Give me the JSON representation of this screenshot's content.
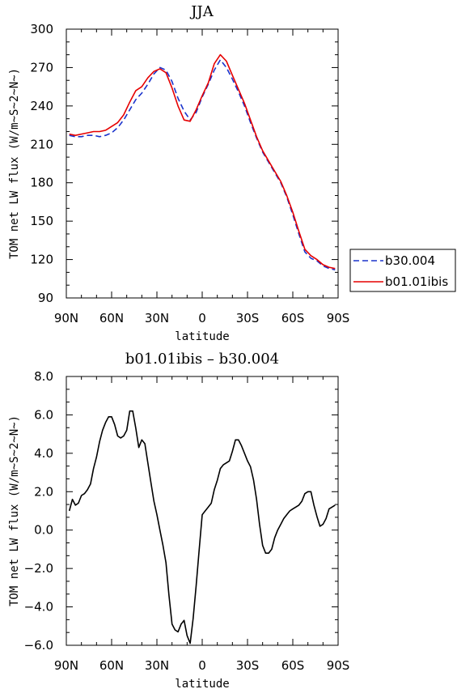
{
  "chart_data": [
    {
      "type": "line",
      "title": "JJA",
      "xlabel": "latitude",
      "ylabel": "TOM net LW flux (W/m~S~2~N~)",
      "xlim": [
        90,
        -90
      ],
      "ylim": [
        90,
        300
      ],
      "x_ticks": [
        90,
        60,
        30,
        0,
        -30,
        -60,
        -90
      ],
      "x_tick_labels": [
        "90N",
        "60N",
        "30N",
        "0",
        "30S",
        "60S",
        "90S"
      ],
      "y_ticks": [
        90,
        120,
        150,
        180,
        210,
        240,
        270,
        300
      ],
      "y_tick_labels": [
        "90",
        "120",
        "150",
        "180",
        "210",
        "240",
        "270",
        "300"
      ],
      "legend_position": "right",
      "x": [
        88,
        84,
        80,
        76,
        72,
        68,
        64,
        60,
        56,
        52,
        48,
        44,
        40,
        36,
        32,
        28,
        24,
        20,
        16,
        12,
        8,
        4,
        0,
        -4,
        -8,
        -12,
        -16,
        -20,
        -24,
        -28,
        -32,
        -36,
        -40,
        -44,
        -48,
        -52,
        -56,
        -60,
        -64,
        -68,
        -72,
        -76,
        -80,
        -84,
        -88
      ],
      "series": [
        {
          "name": "b30.004",
          "color": "#1a33cc",
          "dash": "dashed",
          "values": [
            217,
            216,
            216,
            217,
            217,
            216,
            217,
            219,
            223,
            229,
            237,
            245,
            250,
            257,
            265,
            270,
            268,
            259,
            246,
            236,
            229,
            235,
            247,
            257,
            268,
            276,
            270,
            261,
            251,
            240,
            227,
            215,
            204,
            196,
            188,
            180,
            169,
            155,
            140,
            126,
            121,
            119,
            115,
            113,
            112
          ]
        },
        {
          "name": "b01.01ibis",
          "color": "#e60000",
          "dash": "solid",
          "values": [
            218,
            217,
            218,
            219,
            220,
            220,
            221,
            224,
            227,
            233,
            243,
            252,
            255,
            262,
            267,
            269,
            266,
            254,
            240,
            229,
            228,
            237,
            248,
            258,
            273,
            280,
            275,
            264,
            253,
            242,
            229,
            216,
            205,
            197,
            189,
            181,
            170,
            157,
            142,
            128,
            123,
            120,
            116,
            114,
            113
          ]
        }
      ]
    },
    {
      "type": "line",
      "title": "b01.01ibis – b30.004",
      "xlabel": "latitude",
      "ylabel": "TOM net LW flux (W/m~S~2~N~)",
      "xlim": [
        90,
        -90
      ],
      "ylim": [
        -6,
        8
      ],
      "x_ticks": [
        90,
        60,
        30,
        0,
        -30,
        -60,
        -90
      ],
      "x_tick_labels": [
        "90N",
        "60N",
        "30N",
        "0",
        "30S",
        "60S",
        "90S"
      ],
      "y_ticks": [
        -6,
        -4,
        -2,
        0,
        2,
        4,
        6,
        8
      ],
      "y_tick_labels": [
        "−6.0",
        "−4.0",
        "−2.0",
        "0.0",
        "2.0",
        "4.0",
        "6.0",
        "8.0"
      ],
      "x": [
        88,
        86,
        84,
        82,
        80,
        78,
        76,
        74,
        72,
        70,
        68,
        66,
        64,
        62,
        60,
        58,
        56,
        54,
        52,
        50,
        48,
        46,
        44,
        42,
        40,
        38,
        36,
        34,
        32,
        30,
        28,
        26,
        24,
        22,
        20,
        18,
        16,
        14,
        12,
        10,
        8,
        6,
        4,
        2,
        0,
        -2,
        -4,
        -6,
        -8,
        -10,
        -12,
        -14,
        -16,
        -18,
        -20,
        -22,
        -24,
        -26,
        -28,
        -30,
        -32,
        -34,
        -36,
        -38,
        -40,
        -42,
        -44,
        -46,
        -48,
        -50,
        -52,
        -54,
        -56,
        -58,
        -60,
        -62,
        -64,
        -66,
        -68,
        -70,
        -72,
        -74,
        -76,
        -78,
        -80,
        -82,
        -84,
        -86,
        -88
      ],
      "series": [
        {
          "name": "",
          "color": "#000000",
          "dash": "solid",
          "values": [
            1.0,
            1.6,
            1.3,
            1.4,
            1.8,
            1.9,
            2.1,
            2.4,
            3.2,
            3.8,
            4.6,
            5.2,
            5.6,
            5.9,
            5.9,
            5.5,
            4.9,
            4.8,
            4.9,
            5.2,
            6.2,
            6.2,
            5.3,
            4.3,
            4.7,
            4.5,
            3.5,
            2.5,
            1.5,
            0.8,
            0.0,
            -0.8,
            -1.7,
            -3.4,
            -4.9,
            -5.2,
            -5.3,
            -4.9,
            -4.7,
            -5.5,
            -5.9,
            -4.6,
            -2.9,
            -1.0,
            0.8,
            1.0,
            1.2,
            1.4,
            2.1,
            2.6,
            3.2,
            3.4,
            3.5,
            3.6,
            4.1,
            4.7,
            4.7,
            4.4,
            4.0,
            3.6,
            3.3,
            2.6,
            1.6,
            0.3,
            -0.8,
            -1.2,
            -1.2,
            -1.0,
            -0.4,
            0.0,
            0.3,
            0.6,
            0.8,
            1.0,
            1.1,
            1.2,
            1.3,
            1.5,
            1.9,
            2.0,
            2.0,
            1.3,
            0.7,
            0.2,
            0.3,
            0.6,
            1.1,
            1.2,
            1.3
          ]
        }
      ]
    }
  ]
}
